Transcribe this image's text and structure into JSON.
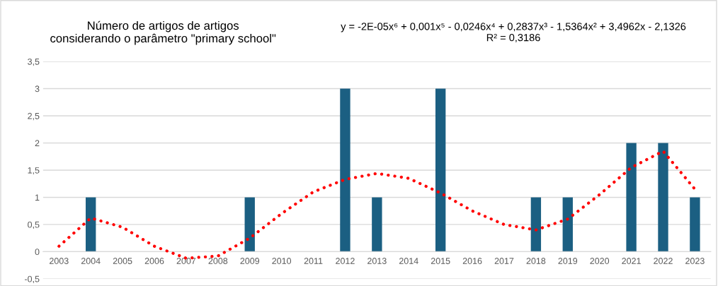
{
  "chart_data": {
    "type": "bar",
    "title": "Número de artigos de artigos\nconsiderando o parâmetro \"primary school\"",
    "annotations": [
      "y = -2E-05x⁶ + 0,001x⁵ - 0,0246x⁴ + 0,2837x³ - 1,5364x² + 3,4962x - 2,1326\nR² = 0,3186"
    ],
    "categories": [
      "2003",
      "2004",
      "2005",
      "2006",
      "2007",
      "2008",
      "2009",
      "2010",
      "2011",
      "2012",
      "2013",
      "2014",
      "2015",
      "2016",
      "2017",
      "2018",
      "2019",
      "2020",
      "2021",
      "2022",
      "2023"
    ],
    "series": [
      {
        "color": "#1b5f82",
        "values": [
          0,
          1,
          0,
          0,
          0,
          0,
          1,
          0,
          0,
          3,
          1,
          0,
          3,
          0,
          0,
          1,
          1,
          0,
          2,
          2,
          1
        ]
      },
      {
        "type": "line",
        "color": "#ff0000",
        "line_style": "dotted",
        "values": [
          0.1,
          0.62,
          0.45,
          0.1,
          -0.12,
          -0.08,
          0.25,
          0.7,
          1.1,
          1.33,
          1.44,
          1.35,
          1.08,
          0.75,
          0.5,
          0.4,
          0.6,
          1.05,
          1.55,
          1.85,
          1.15
        ]
      }
    ],
    "ylim": [
      -0.5,
      3.5
    ],
    "yticks": [
      {
        "value": -0.5,
        "label": "-0,5"
      },
      0,
      {
        "value": 0.5,
        "label": "0,5"
      },
      1,
      {
        "value": 1.5,
        "label": "1,5"
      },
      2,
      {
        "value": 2.5,
        "label": "2,5"
      },
      3,
      {
        "value": 3.5,
        "label": "3,5"
      }
    ],
    "grid": "y"
  }
}
